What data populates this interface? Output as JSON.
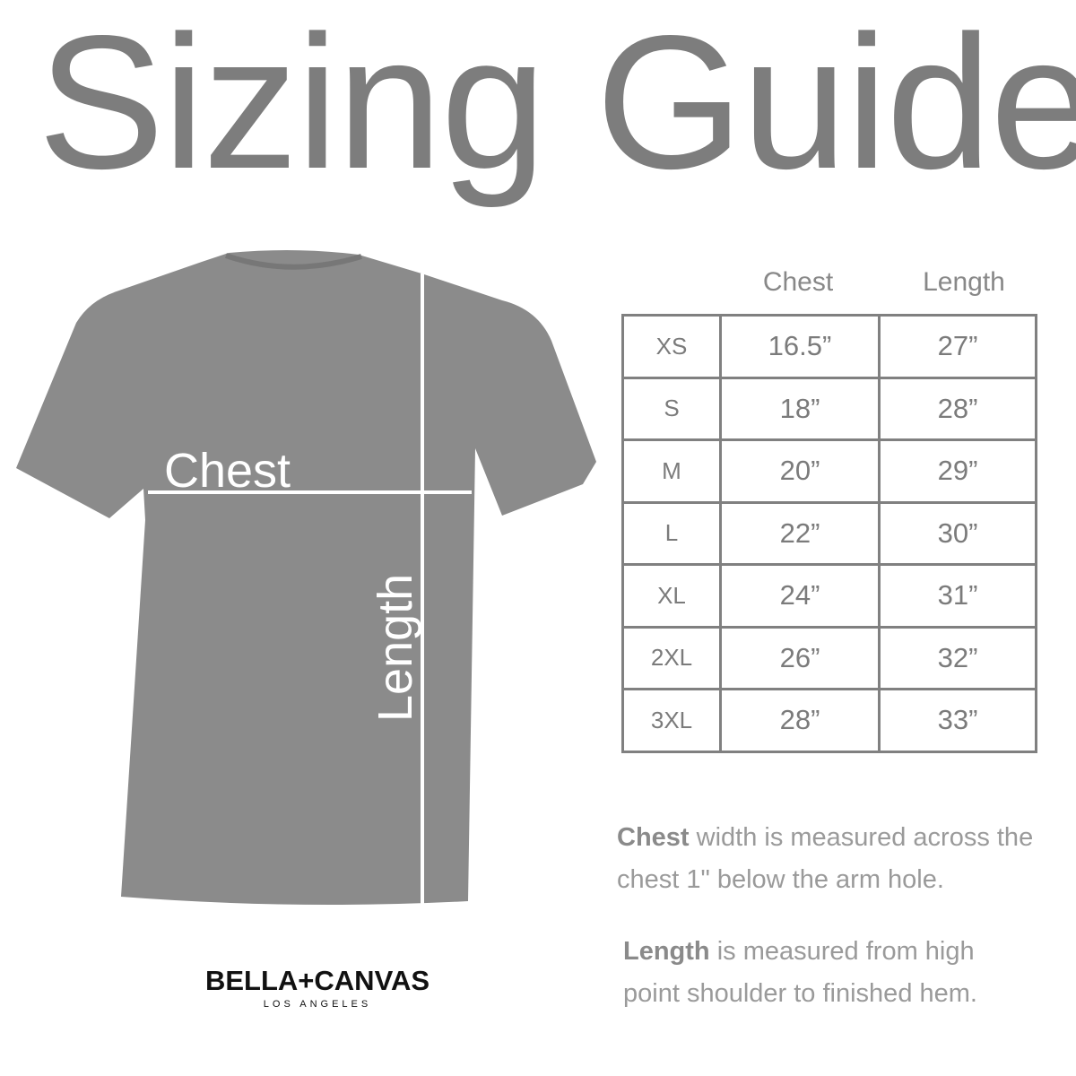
{
  "title": "Sizing Guide",
  "shirt": {
    "chest_label": "Chest",
    "length_label": "Length",
    "color": "#8a8a8a"
  },
  "table": {
    "headers": [
      "Chest",
      "Length"
    ],
    "rows": [
      {
        "size": "XS",
        "chest": "16.5”",
        "length": "27”"
      },
      {
        "size": "S",
        "chest": "18”",
        "length": "28”"
      },
      {
        "size": "M",
        "chest": "20”",
        "length": "29”"
      },
      {
        "size": "L",
        "chest": "22”",
        "length": "30”"
      },
      {
        "size": "XL",
        "chest": "24”",
        "length": "31”"
      },
      {
        "size": "2XL",
        "chest": "26”",
        "length": "32”"
      },
      {
        "size": "3XL",
        "chest": "28”",
        "length": "33”"
      }
    ]
  },
  "notes": {
    "chest_bold": "Chest",
    "chest_text": " width is measured across the chest 1\" below the arm hole.",
    "length_bold": "Length",
    "length_text": " is measured from high point shoulder to finished hem."
  },
  "logo": {
    "brand": "BELLA+CANVAS",
    "sub": "LOS ANGELES"
  }
}
